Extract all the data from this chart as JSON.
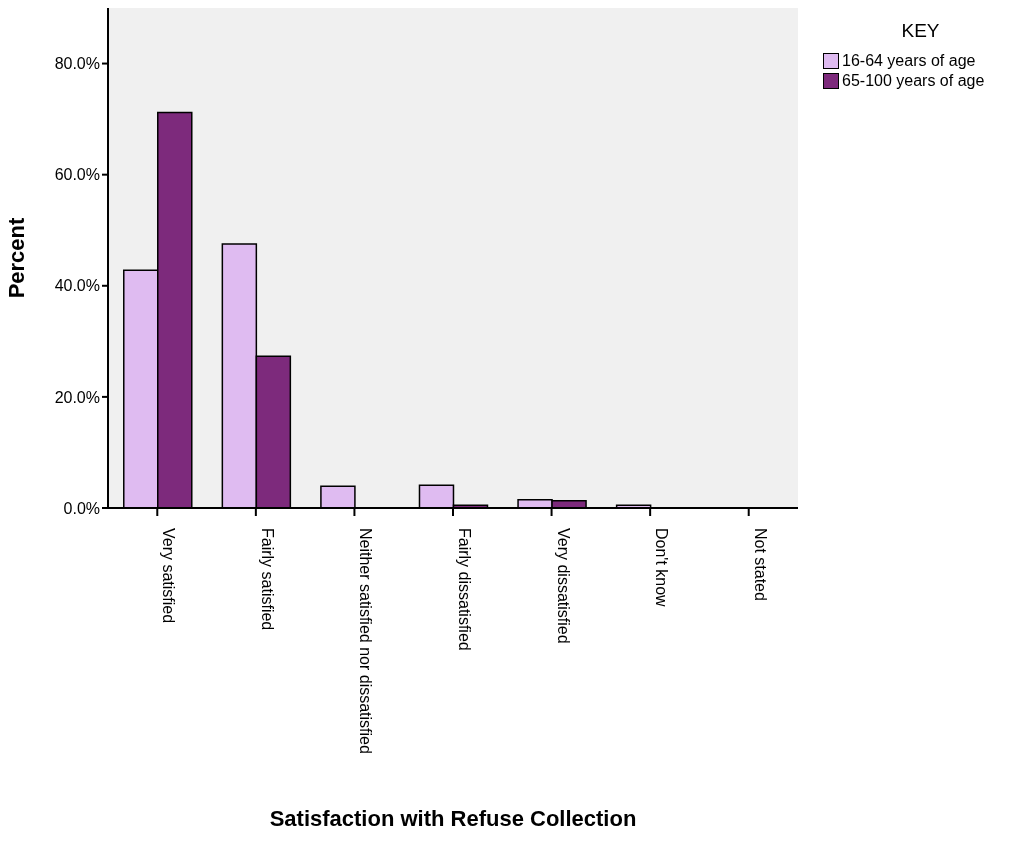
{
  "chart_data": {
    "type": "bar",
    "xlabel": "Satisfaction with Refuse Collection",
    "ylabel": "Percent",
    "legend_title": "KEY",
    "legend": "top right",
    "categories": [
      "Very satisfied",
      "Fairly satisfied",
      "Neither satisfied nor dissatisfied",
      "Fairly dissatisfied",
      "Very dissatisfied",
      "Don't know",
      "Not stated"
    ],
    "series": [
      {
        "name": "16-64 years of age",
        "color": "#dfbbf1",
        "values": [
          42.8,
          47.5,
          3.9,
          4.1,
          1.5,
          0.5,
          0
        ]
      },
      {
        "name": "65-100 years of age",
        "color": "#7d2a7c",
        "values": [
          71.2,
          27.3,
          0,
          0.5,
          1.3,
          0,
          0
        ]
      }
    ],
    "ylim": [
      0,
      90
    ],
    "yticks": [
      {
        "value": 0,
        "label": "0.0%"
      },
      {
        "value": 20,
        "label": "20.0%"
      },
      {
        "value": 40,
        "label": "40.0%"
      },
      {
        "value": 60,
        "label": "60.0%"
      },
      {
        "value": 80,
        "label": "80.0%"
      }
    ]
  }
}
